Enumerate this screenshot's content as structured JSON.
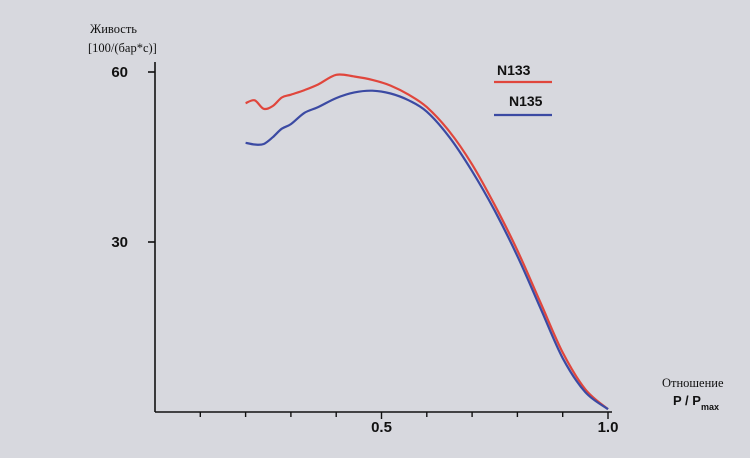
{
  "chart_data": {
    "type": "line",
    "ylabel": "Живость",
    "yunit": "[100/(бар*с)]",
    "xlabel": "Отношение",
    "xlabel_formula": {
      "main": "P / P",
      "subscript": "max"
    },
    "xlim": [
      0,
      1.0
    ],
    "ylim": [
      0,
      60
    ],
    "xticks": [
      0.5,
      1.0
    ],
    "xtick_labels": [
      "0.5",
      "1.0"
    ],
    "yticks": [
      30,
      60
    ],
    "ytick_labels": [
      "30",
      "60"
    ],
    "grid": false,
    "legend_position": "top-right",
    "series": [
      {
        "name": "N133",
        "color": "#e0463c",
        "x": [
          0.2,
          0.22,
          0.24,
          0.26,
          0.28,
          0.3,
          0.33,
          0.36,
          0.4,
          0.44,
          0.48,
          0.52,
          0.56,
          0.6,
          0.65,
          0.7,
          0.75,
          0.8,
          0.85,
          0.9,
          0.95,
          1.0
        ],
        "y": [
          54.5,
          55.0,
          53.5,
          54.0,
          55.5,
          56.0,
          56.8,
          57.8,
          59.5,
          59.2,
          58.6,
          57.6,
          56.0,
          53.8,
          49.5,
          43.7,
          36.5,
          28.5,
          19.5,
          10.5,
          4.0,
          0.5
        ]
      },
      {
        "name": "N135",
        "color": "#3b4aa3",
        "x": [
          0.2,
          0.22,
          0.24,
          0.26,
          0.28,
          0.3,
          0.33,
          0.36,
          0.4,
          0.44,
          0.48,
          0.52,
          0.56,
          0.6,
          0.65,
          0.7,
          0.75,
          0.8,
          0.85,
          0.9,
          0.95,
          1.0
        ],
        "y": [
          47.5,
          47.2,
          47.3,
          48.5,
          50.0,
          50.8,
          52.8,
          53.8,
          55.4,
          56.4,
          56.7,
          56.2,
          55.0,
          53.0,
          48.5,
          42.5,
          35.5,
          27.5,
          18.5,
          9.5,
          3.5,
          0.5
        ]
      }
    ]
  }
}
